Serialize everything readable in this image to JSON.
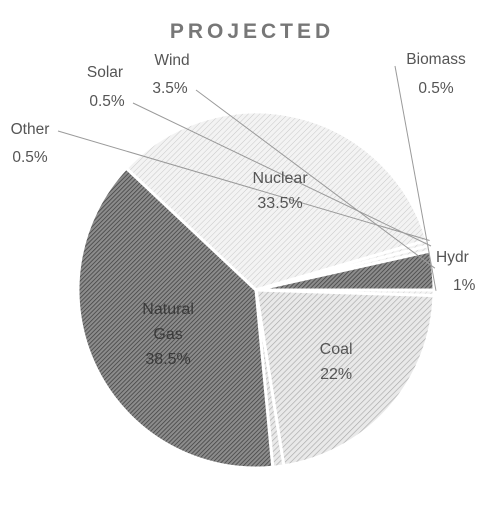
{
  "chart_data": {
    "type": "pie",
    "title": "PROJECTED",
    "slices": [
      {
        "name": "Biomass",
        "value": 0.5,
        "value_label": "0.5%",
        "label_side": "outside",
        "pattern": "light"
      },
      {
        "name": "Coal",
        "value": 22,
        "value_label": "22%",
        "label_side": "inside",
        "pattern": "medium"
      },
      {
        "name": "Hydro",
        "display_name": "Hydr",
        "value": 1,
        "value_label": "1%",
        "label_side": "outside",
        "pattern": "medium"
      },
      {
        "name": "Natural Gas",
        "name_lines": [
          "Natural",
          "Gas"
        ],
        "value": 38.5,
        "value_label": "38.5%",
        "label_side": "inside",
        "pattern": "dark"
      },
      {
        "name": "Nuclear",
        "value": 33.5,
        "value_label": "33.5%",
        "label_side": "inside",
        "pattern": "light"
      },
      {
        "name": "Other",
        "value": 0.5,
        "value_label": "0.5%",
        "label_side": "outside",
        "pattern": "light"
      },
      {
        "name": "Solar",
        "value": 0.5,
        "value_label": "0.5%",
        "label_side": "outside",
        "pattern": "light"
      },
      {
        "name": "Wind",
        "value": 3.5,
        "value_label": "3.5%",
        "label_side": "outside",
        "pattern": "dark"
      }
    ],
    "legend": "none"
  }
}
